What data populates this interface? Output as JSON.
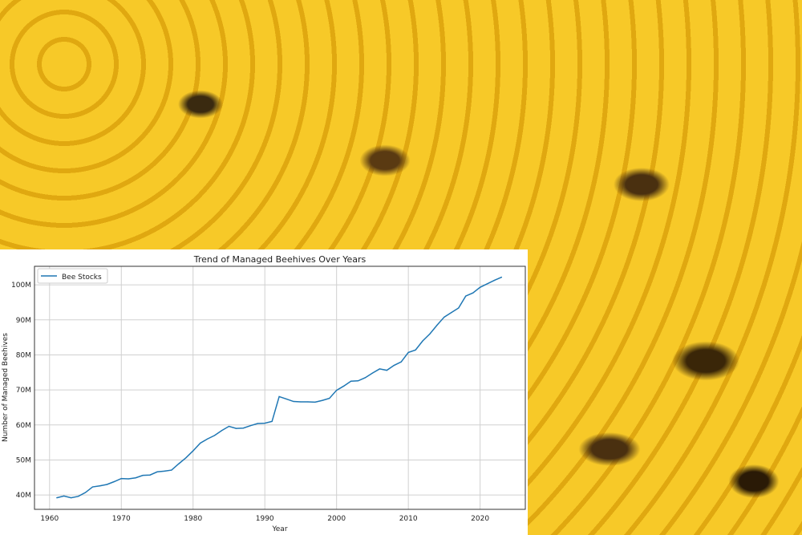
{
  "chart_data": {
    "type": "line",
    "title": "Trend of Managed Beehives Over Years",
    "xlabel": "Year",
    "ylabel": "Number of Managed Beehives",
    "xlim": [
      1957.9,
      2026.3
    ],
    "ylim": [
      35.9,
      105.3
    ],
    "xticks": [
      1960,
      1970,
      1980,
      1990,
      2000,
      2010,
      2020
    ],
    "yticks": [
      40,
      50,
      60,
      70,
      80,
      90,
      100
    ],
    "ytick_labels": [
      "40M",
      "50M",
      "60M",
      "70M",
      "80M",
      "90M",
      "100M"
    ],
    "y_unit": "millions",
    "grid": true,
    "legend_position": "top-left",
    "series": [
      {
        "name": "Bee Stocks",
        "color": "#1f77b4",
        "x": [
          1961,
          1962,
          1963,
          1964,
          1965,
          1966,
          1967,
          1968,
          1969,
          1970,
          1971,
          1972,
          1973,
          1974,
          1975,
          1976,
          1977,
          1978,
          1979,
          1980,
          1981,
          1982,
          1983,
          1984,
          1985,
          1986,
          1987,
          1988,
          1989,
          1990,
          1991,
          1992,
          1993,
          1994,
          1995,
          1996,
          1997,
          1998,
          1999,
          2000,
          2001,
          2002,
          2003,
          2004,
          2005,
          2006,
          2007,
          2008,
          2009,
          2010,
          2011,
          2012,
          2013,
          2014,
          2015,
          2016,
          2017,
          2018,
          2019,
          2020,
          2021,
          2022,
          2023
        ],
        "values": [
          39.2,
          39.7,
          39.2,
          39.6,
          40.7,
          42.3,
          42.6,
          43.0,
          43.8,
          44.7,
          44.6,
          44.9,
          45.6,
          45.7,
          46.6,
          46.8,
          47.1,
          48.9,
          50.6,
          52.6,
          54.8,
          56.0,
          57.0,
          58.4,
          59.6,
          59.0,
          59.1,
          59.8,
          60.4,
          60.5,
          61.0,
          68.1,
          67.4,
          66.7,
          66.6,
          66.6,
          66.5,
          67.0,
          67.6,
          69.9,
          71.1,
          72.5,
          72.6,
          73.5,
          74.8,
          76.0,
          75.6,
          77.0,
          78.0,
          80.7,
          81.4,
          84.0,
          86.0,
          88.5,
          90.8,
          92.1,
          93.4,
          96.8,
          97.7,
          99.3,
          100.3,
          101.3,
          102.2
        ]
      }
    ]
  }
}
